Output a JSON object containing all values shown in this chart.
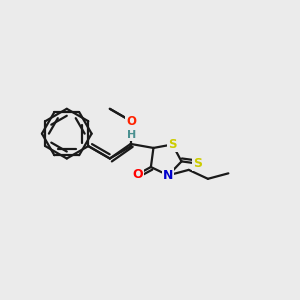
{
  "bg_color": "#ebebeb",
  "bond_color": "#1a1a1a",
  "bond_width": 1.6,
  "atom_colors": {
    "O_carbonyl": "#ff0000",
    "N": "#0000cd",
    "S": "#cccc00",
    "O_ring": "#ff2200",
    "H": "#4a9090",
    "C": "#1a1a1a"
  },
  "figsize": [
    3.0,
    3.0
  ],
  "dpi": 100
}
